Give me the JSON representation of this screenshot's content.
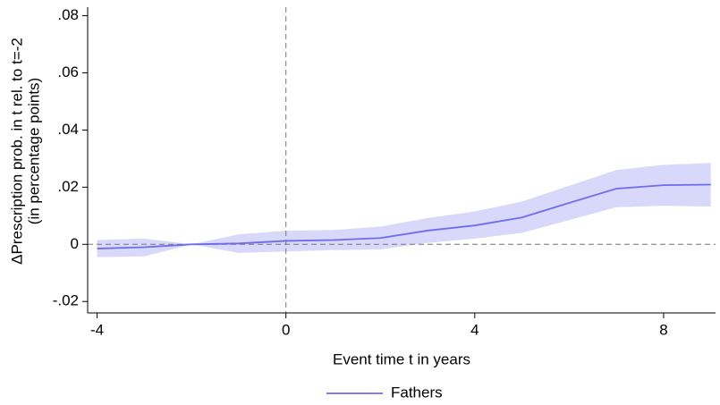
{
  "chart_data": {
    "type": "line",
    "y_label": [
      "ΔPrescription prob. in t rel. to t=-2",
      "(in percentage points)"
    ],
    "x_label": "Event time t in years",
    "x": [
      -4,
      -3,
      -2,
      -1,
      0,
      1,
      2,
      3,
      4,
      5,
      6,
      7,
      8,
      9
    ],
    "series": [
      {
        "name": "Fathers",
        "color": "#6c6cf0",
        "band_color": "#d8d8fa",
        "values": [
          -0.0015,
          -0.001,
          0,
          0.0003,
          0.0012,
          0.0015,
          0.0022,
          0.0048,
          0.0066,
          0.0094,
          0.0145,
          0.0195,
          0.0207,
          0.0209
        ],
        "lower": [
          -0.0045,
          -0.0042,
          0,
          -0.003,
          -0.0025,
          -0.002,
          -0.0018,
          0.0005,
          0.002,
          0.004,
          0.0085,
          0.013,
          0.0135,
          0.0132
        ],
        "upper": [
          0.0015,
          0.002,
          0,
          0.0035,
          0.0048,
          0.005,
          0.0062,
          0.0092,
          0.0115,
          0.015,
          0.0205,
          0.026,
          0.0278,
          0.0285
        ]
      }
    ],
    "xlim": [
      -4.2,
      9.1
    ],
    "ylim": [
      -0.024,
      0.083
    ],
    "xticks": [
      -4,
      0,
      4,
      8
    ],
    "yticks": [
      {
        "value": -0.02,
        "label": "-.02"
      },
      0,
      {
        "value": 0.02,
        "label": ".02"
      },
      {
        "value": 0.04,
        "label": ".04"
      },
      {
        "value": 0.06,
        "label": ".06"
      },
      {
        "value": 0.08,
        "label": ".08"
      }
    ],
    "vline": 0,
    "hline": 0
  }
}
